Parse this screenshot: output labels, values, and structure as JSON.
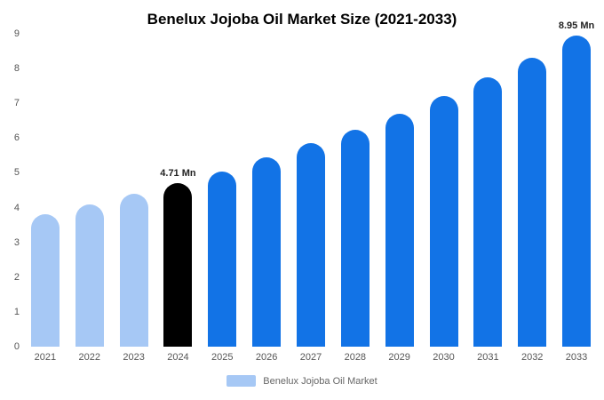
{
  "title": "Benelux Jojoba Oil Market Size (2021-2033)",
  "legend": {
    "label": "Benelux Jojoba Oil Market",
    "swatch_color": "#A6C8F5"
  },
  "colors": {
    "historical_bar": "#A6C8F5",
    "base_year_bar": "#000000",
    "forecast_bar": "#1273E6",
    "axis_text": "#555555",
    "annotation_text": "#222222"
  },
  "chart_data": {
    "type": "bar",
    "title": "Benelux Jojoba Oil Market Size (2021-2033)",
    "categories": [
      "2021",
      "2022",
      "2023",
      "2024",
      "2025",
      "2026",
      "2027",
      "2028",
      "2029",
      "2030",
      "2031",
      "2032",
      "2033"
    ],
    "values": [
      3.8,
      4.1,
      4.4,
      4.71,
      5.05,
      5.45,
      5.85,
      6.25,
      6.7,
      7.2,
      7.75,
      8.3,
      8.95
    ],
    "unit": "Mn",
    "bar_colors": [
      "#A6C8F5",
      "#A6C8F5",
      "#A6C8F5",
      "#000000",
      "#1273E6",
      "#1273E6",
      "#1273E6",
      "#1273E6",
      "#1273E6",
      "#1273E6",
      "#1273E6",
      "#1273E6",
      "#1273E6"
    ],
    "annotations": [
      {
        "index": 3,
        "text": "4.71 Mn"
      },
      {
        "index": 12,
        "text": "8.95 Mn"
      }
    ],
    "xlabel": "",
    "ylabel": "",
    "ylim": [
      0,
      9
    ],
    "yticks": [
      0,
      1,
      2,
      3,
      4,
      5,
      6,
      7,
      8,
      9
    ],
    "grid": false,
    "legend_position": "bottom",
    "legend_entries": [
      "Benelux Jojoba Oil Market"
    ]
  }
}
